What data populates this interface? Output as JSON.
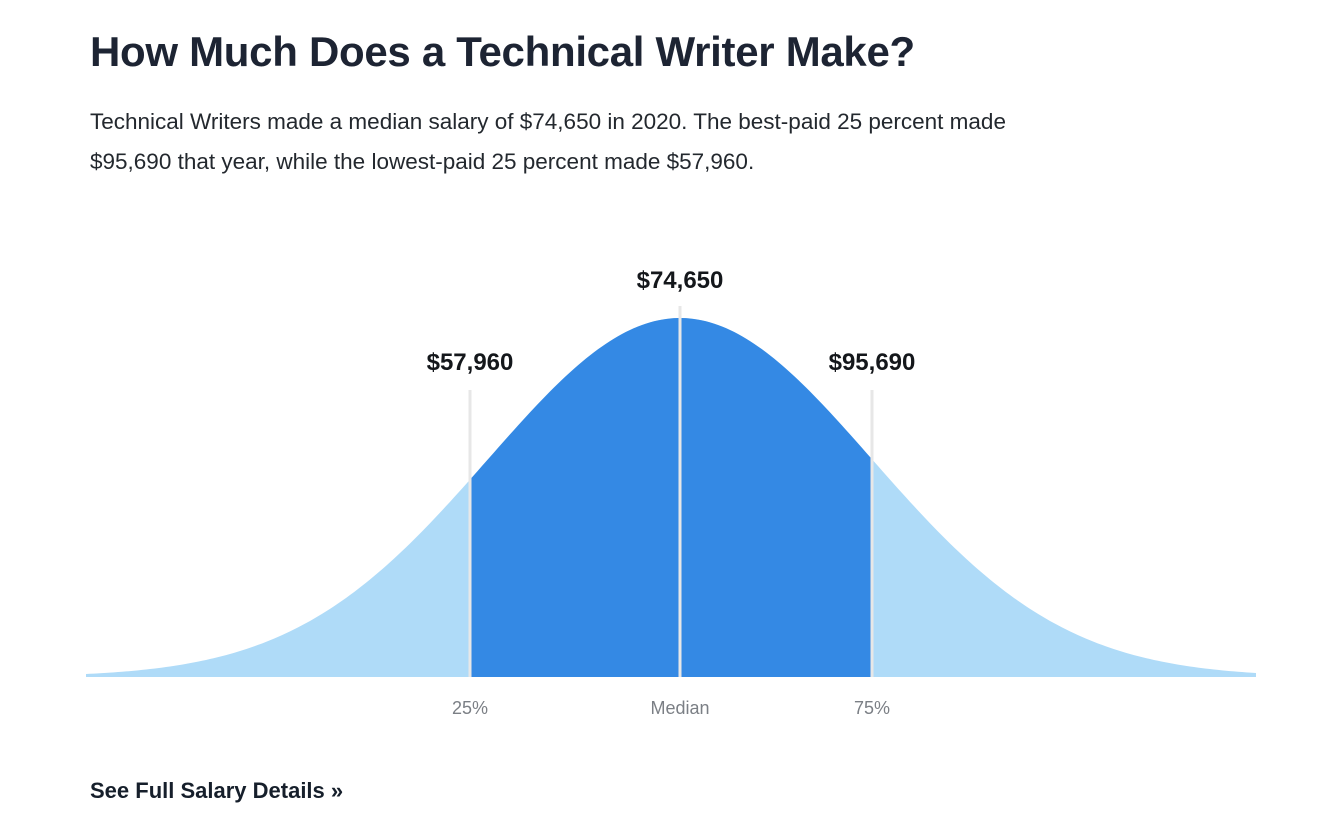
{
  "header": {
    "title": "How Much Does a Technical Writer Make?",
    "subtitle_line1": "Technical Writers made a median salary of $74,650 in 2020. The best-paid 25 percent made",
    "subtitle_line2": "$95,690 that year, while the lowest-paid 25 percent made $57,960."
  },
  "chart_data": {
    "type": "area",
    "title": "Technical Writer salary distribution (bell curve)",
    "year_shown": "2020",
    "points": [
      {
        "label": "25%",
        "value_usd": 57960,
        "value_label": "$57,960"
      },
      {
        "label": "Median",
        "value_usd": 74650,
        "value_label": "$74,650"
      },
      {
        "label": "75%",
        "value_usd": 95690,
        "value_label": "$95,690"
      }
    ],
    "legend": "none",
    "grid": "off",
    "colors": {
      "fill_light": "#AFDBF8",
      "fill_dark": "#3489E4",
      "marker_line": "#E7E7E7",
      "axis_label": "#7B7F85",
      "value_label": "#14171B"
    }
  },
  "footer": {
    "link_label": "See Full Salary Details »"
  }
}
